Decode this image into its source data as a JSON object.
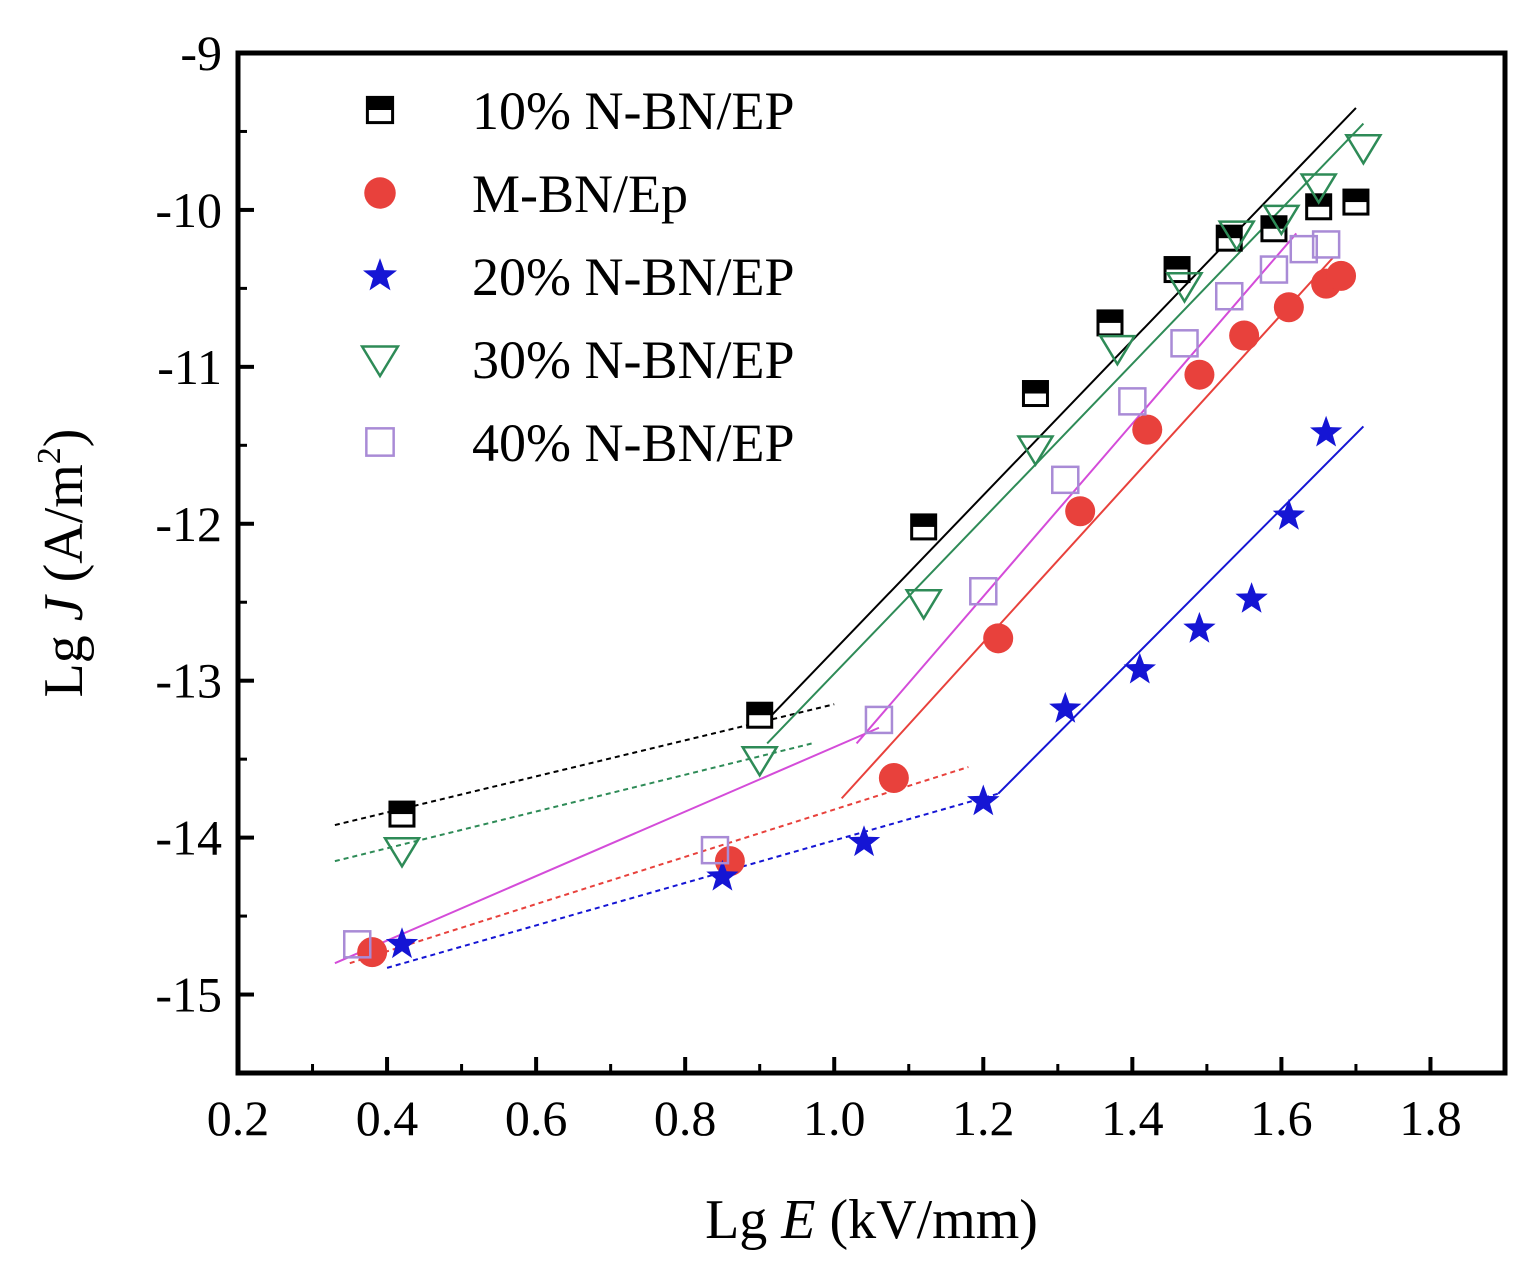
{
  "chart_data": {
    "type": "scatter",
    "title": "",
    "xlabel": {
      "prefix": "Lg ",
      "var": "E",
      "suffix": " (kV/mm)"
    },
    "ylabel": {
      "prefix": "Lg ",
      "var": "J",
      "suffix": " (A/m",
      "sup": "2",
      "close": ")"
    },
    "xlim": [
      0.2,
      1.9
    ],
    "ylim": [
      -15.5,
      -9
    ],
    "xticks": [
      0.2,
      0.4,
      0.6,
      0.8,
      1.0,
      1.2,
      1.4,
      1.6,
      1.8
    ],
    "xtick_labels": [
      "0.2",
      "0.4",
      "0.6",
      "0.8",
      "1.0",
      "1.2",
      "1.4",
      "1.6",
      "1.8"
    ],
    "yticks": [
      -9,
      -10,
      -11,
      -12,
      -13,
      -14,
      -15
    ],
    "ytick_labels": [
      "-9",
      "-10",
      "-11",
      "-12",
      "-13",
      "-14",
      "-15"
    ],
    "legend_position": "top-left",
    "series": [
      {
        "name": "10% N-BN/EP",
        "marker": "half-filled-square",
        "color": "#000000",
        "x": [
          0.42,
          0.9,
          1.12,
          1.27,
          1.37,
          1.46,
          1.53,
          1.59,
          1.65,
          1.7
        ],
        "y": [
          -13.85,
          -13.22,
          -12.02,
          -11.17,
          -10.72,
          -10.38,
          -10.18,
          -10.12,
          -9.98,
          -9.95
        ],
        "fits": [
          {
            "x": [
              0.33,
              1.0
            ],
            "y": [
              -13.92,
              -13.15
            ],
            "color": "#000000",
            "dash": true
          },
          {
            "x": [
              0.91,
              1.7
            ],
            "y": [
              -13.25,
              -9.35
            ],
            "color": "#000000",
            "dash": false
          }
        ]
      },
      {
        "name": "M-BN/Ep",
        "marker": "filled-circle",
        "color": "#e8413c",
        "x": [
          0.38,
          0.86,
          1.08,
          1.22,
          1.33,
          1.42,
          1.49,
          1.55,
          1.61,
          1.66,
          1.68
        ],
        "y": [
          -14.73,
          -14.15,
          -13.62,
          -12.73,
          -11.92,
          -11.4,
          -11.05,
          -10.8,
          -10.62,
          -10.47,
          -10.42
        ],
        "fits": [
          {
            "x": [
              0.35,
              1.18
            ],
            "y": [
              -14.8,
              -13.55
            ],
            "color": "#e8413c",
            "dash": true
          },
          {
            "x": [
              1.01,
              1.67
            ],
            "y": [
              -13.75,
              -10.3
            ],
            "color": "#e8413c",
            "dash": false
          }
        ]
      },
      {
        "name": "20% N-BN/EP",
        "marker": "star",
        "color": "#1515d4",
        "x": [
          0.42,
          0.85,
          1.04,
          1.2,
          1.31,
          1.41,
          1.49,
          1.56,
          1.61,
          1.66
        ],
        "y": [
          -14.68,
          -14.25,
          -14.03,
          -13.77,
          -13.18,
          -12.93,
          -12.67,
          -12.48,
          -11.95,
          -11.42
        ],
        "fits": [
          {
            "x": [
              0.4,
              1.22
            ],
            "y": [
              -14.83,
              -13.72
            ],
            "color": "#1515d4",
            "dash": true
          },
          {
            "x": [
              1.22,
              1.71
            ],
            "y": [
              -13.72,
              -11.38
            ],
            "color": "#1515d4",
            "dash": false
          }
        ]
      },
      {
        "name": "30% N-BN/EP",
        "marker": "open-triangle-down",
        "color": "#2e8b57",
        "x": [
          0.42,
          0.9,
          1.12,
          1.27,
          1.38,
          1.47,
          1.54,
          1.6,
          1.65,
          1.71
        ],
        "y": [
          -14.08,
          -13.5,
          -12.5,
          -11.52,
          -10.88,
          -10.48,
          -10.15,
          -10.05,
          -9.85,
          -9.6
        ],
        "fits": [
          {
            "x": [
              0.33,
              0.97
            ],
            "y": [
              -14.15,
              -13.4
            ],
            "color": "#2e8b57",
            "dash": true
          },
          {
            "x": [
              0.91,
              1.71
            ],
            "y": [
              -13.4,
              -9.45
            ],
            "color": "#2e8b57",
            "dash": false
          }
        ]
      },
      {
        "name": "40% N-BN/EP",
        "marker": "open-square",
        "color": "#a98bd6",
        "x": [
          0.36,
          0.84,
          1.06,
          1.2,
          1.31,
          1.4,
          1.47,
          1.53,
          1.59,
          1.63,
          1.66
        ],
        "y": [
          -14.68,
          -14.08,
          -13.25,
          -12.43,
          -11.72,
          -11.22,
          -10.85,
          -10.55,
          -10.38,
          -10.25,
          -10.22
        ],
        "fits": [
          {
            "x": [
              0.33,
              1.06
            ],
            "y": [
              -14.8,
              -13.3
            ],
            "color": "#d44cd9",
            "dash": false
          },
          {
            "x": [
              1.03,
              1.62
            ],
            "y": [
              -13.4,
              -10.15
            ],
            "color": "#d44cd9",
            "dash": false
          }
        ]
      }
    ]
  }
}
